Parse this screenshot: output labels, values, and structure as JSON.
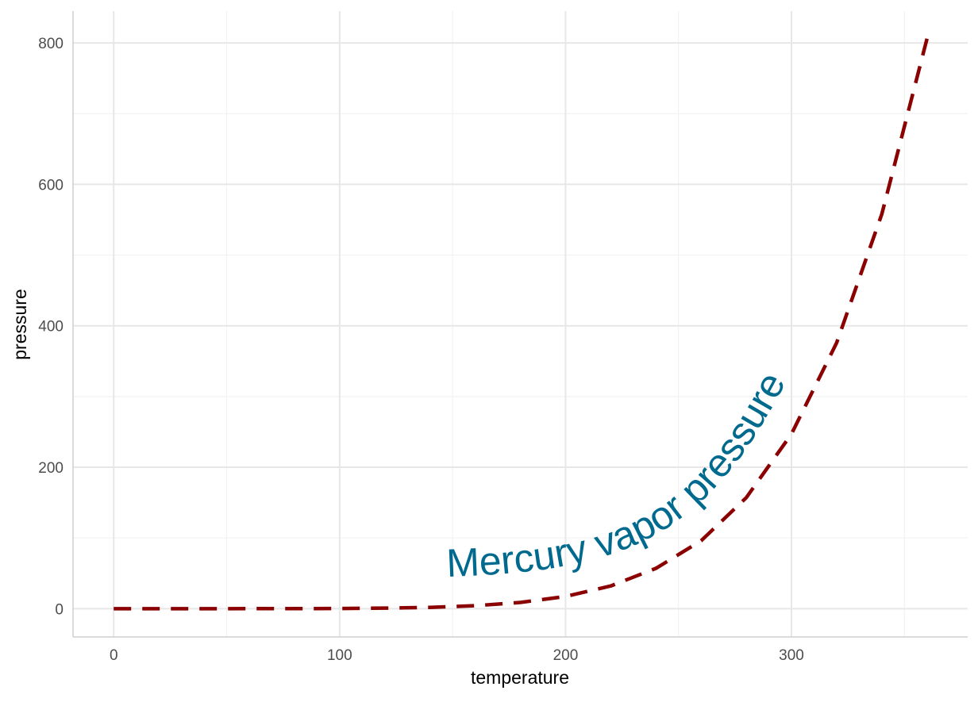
{
  "chart_data": {
    "type": "line",
    "title": "",
    "xlabel": "temperature",
    "ylabel": "pressure",
    "xlim": [
      -18,
      378
    ],
    "ylim": [
      -40,
      845
    ],
    "x_ticks": [
      0,
      100,
      200,
      300
    ],
    "y_ticks": [
      0,
      200,
      400,
      600,
      800
    ],
    "x_minor": [
      50,
      150,
      250,
      350
    ],
    "y_minor": [
      100,
      300,
      500,
      700
    ],
    "grid": true,
    "series": [
      {
        "color": "#8b0000",
        "line_style": "dashed",
        "x": [
          0,
          20,
          40,
          60,
          80,
          100,
          120,
          140,
          160,
          180,
          200,
          220,
          240,
          260,
          280,
          300,
          320,
          340,
          360
        ],
        "y": [
          0.0002,
          0.0012,
          0.006,
          0.03,
          0.09,
          0.27,
          0.75,
          1.85,
          4.2,
          8.8,
          17.3,
          32.1,
          57,
          96,
          157,
          247,
          376,
          558,
          806
        ]
      }
    ],
    "annotations": [
      {
        "text": "Mercury vapor pressure",
        "color": "#006a8e",
        "style": "text-along-curve"
      }
    ]
  }
}
